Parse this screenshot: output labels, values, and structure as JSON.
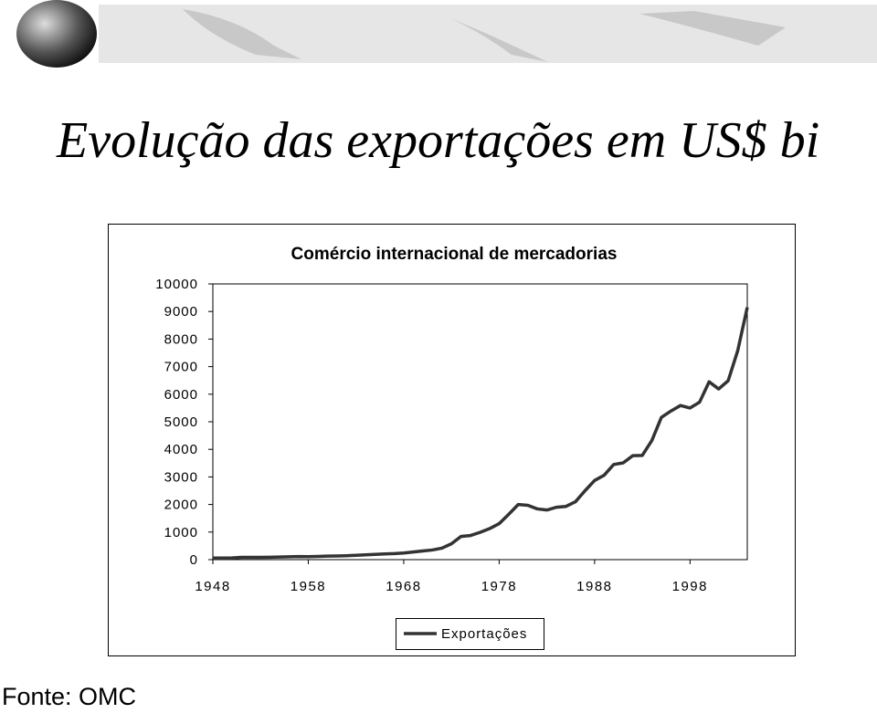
{
  "header": {
    "title": "Evolução das exportações em US$ bi"
  },
  "footer": {
    "source": "Fonte: OMC"
  },
  "chart_data": {
    "type": "line",
    "title": "Comércio internacional de mercadorias",
    "x": [
      1948,
      1949,
      1950,
      1951,
      1952,
      1953,
      1954,
      1955,
      1956,
      1957,
      1958,
      1959,
      1960,
      1961,
      1962,
      1963,
      1964,
      1965,
      1966,
      1967,
      1968,
      1969,
      1970,
      1971,
      1972,
      1973,
      1974,
      1975,
      1976,
      1977,
      1978,
      1979,
      1980,
      1981,
      1982,
      1983,
      1984,
      1985,
      1986,
      1987,
      1988,
      1989,
      1990,
      1991,
      1992,
      1993,
      1994,
      1995,
      1996,
      1997,
      1998,
      1999,
      2000,
      2001,
      2002,
      2003,
      2004
    ],
    "series": [
      {
        "name": "Exportações",
        "color": "#333333",
        "values": [
          58,
          59,
          62,
          84,
          81,
          83,
          86,
          94,
          104,
          112,
          108,
          116,
          130,
          134,
          142,
          157,
          175,
          190,
          207,
          218,
          240,
          276,
          315,
          350,
          415,
          575,
          840,
          875,
          990,
          1125,
          1305,
          1645,
          2000,
          1970,
          1840,
          1800,
          1900,
          1930,
          2100,
          2500,
          2870,
          3060,
          3450,
          3510,
          3770,
          3780,
          4320,
          5160,
          5390,
          5590,
          5500,
          5710,
          6450,
          6190,
          6490,
          7580,
          9150
        ]
      }
    ],
    "xlim": [
      1948,
      2004
    ],
    "xticks": [
      1948,
      1958,
      1968,
      1978,
      1988,
      1998
    ],
    "ylim": [
      0,
      10000
    ],
    "yticks": [
      0,
      1000,
      2000,
      3000,
      4000,
      5000,
      6000,
      7000,
      8000,
      9000,
      10000
    ]
  }
}
